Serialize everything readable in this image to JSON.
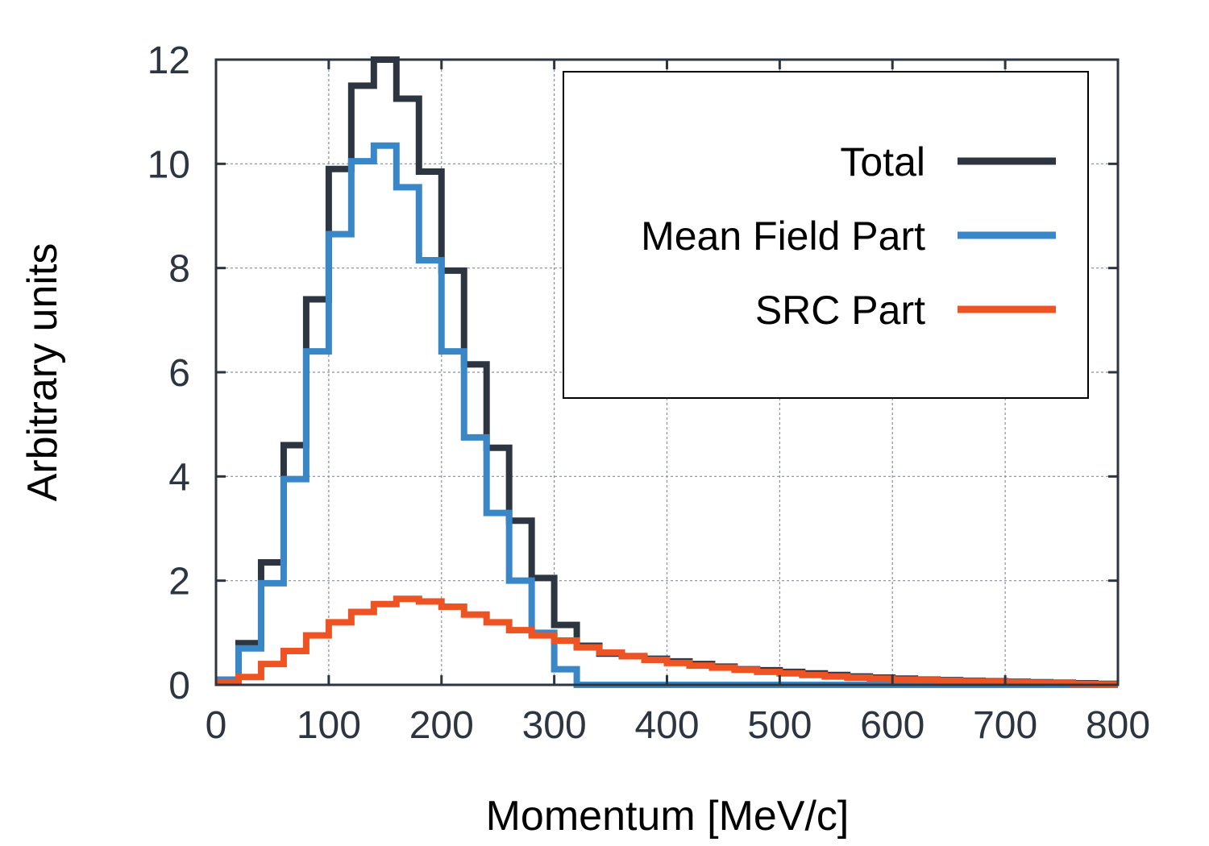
{
  "chart_data": {
    "type": "line",
    "step": true,
    "title": "",
    "xlabel": "Momentum [MeV/c]",
    "ylabel": "Arbitrary units",
    "xlim": [
      0,
      800
    ],
    "ylim": [
      0,
      12
    ],
    "xticks": [
      "0",
      "100",
      "200",
      "300",
      "400",
      "500",
      "600",
      "700",
      "800"
    ],
    "yticks": [
      "0",
      "2",
      "4",
      "6",
      "8",
      "10",
      "12"
    ],
    "grid": true,
    "legend_position": "top-right",
    "bin_edges": [
      0,
      20,
      40,
      60,
      80,
      100,
      120,
      140,
      160,
      180,
      200,
      220,
      240,
      260,
      280,
      300,
      320,
      340,
      360,
      380,
      400,
      420,
      440,
      460,
      480,
      500,
      520,
      540,
      560,
      580,
      600,
      620,
      640,
      660,
      680,
      700,
      720,
      740,
      760,
      780,
      800
    ],
    "series": [
      {
        "name": "Total",
        "color": "#2d3540",
        "values": [
          0.1,
          0.8,
          2.35,
          4.6,
          7.4,
          9.9,
          11.5,
          12.0,
          11.25,
          9.85,
          7.95,
          6.15,
          4.55,
          3.15,
          2.05,
          1.15,
          0.75,
          0.6,
          0.55,
          0.5,
          0.45,
          0.4,
          0.35,
          0.3,
          0.28,
          0.25,
          0.22,
          0.19,
          0.16,
          0.14,
          0.12,
          0.1,
          0.09,
          0.08,
          0.07,
          0.06,
          0.05,
          0.04,
          0.03,
          0.02
        ]
      },
      {
        "name": "Mean Field Part",
        "color": "#3a87c8",
        "values": [
          0.1,
          0.7,
          1.95,
          3.95,
          6.4,
          8.65,
          10.05,
          10.35,
          9.55,
          8.15,
          6.4,
          4.75,
          3.3,
          2.0,
          1.0,
          0.3,
          0.0,
          0.0,
          0.0,
          0.0,
          0.0,
          0.0,
          0.0,
          0.0,
          0.0,
          0.0,
          0.0,
          0.0,
          0.0,
          0.0,
          0.0,
          0.0,
          0.0,
          0.0,
          0.0,
          0.0,
          0.0,
          0.0,
          0.0,
          0.0
        ]
      },
      {
        "name": "SRC Part",
        "color": "#ee5323",
        "values": [
          0.05,
          0.15,
          0.4,
          0.65,
          0.95,
          1.2,
          1.4,
          1.55,
          1.65,
          1.6,
          1.5,
          1.35,
          1.2,
          1.05,
          0.95,
          0.85,
          0.72,
          0.62,
          0.55,
          0.48,
          0.42,
          0.37,
          0.33,
          0.29,
          0.25,
          0.22,
          0.19,
          0.16,
          0.14,
          0.12,
          0.1,
          0.09,
          0.08,
          0.07,
          0.06,
          0.05,
          0.04,
          0.03,
          0.02,
          0.01
        ]
      }
    ]
  }
}
